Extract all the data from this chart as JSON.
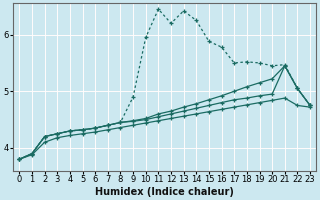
{
  "xlabel": "Humidex (Indice chaleur)",
  "ylabel": "",
  "bg_color": "#cce8f0",
  "grid_color_major": "#ffffff",
  "grid_color_red": "#e88080",
  "line_color": "#1a6b62",
  "xlim": [
    -0.5,
    23.5
  ],
  "ylim": [
    3.6,
    6.55
  ],
  "x_ticks": [
    0,
    1,
    2,
    3,
    4,
    5,
    6,
    7,
    8,
    9,
    10,
    11,
    12,
    13,
    14,
    15,
    16,
    17,
    18,
    19,
    20,
    21,
    22,
    23
  ],
  "y_ticks": [
    4,
    5,
    6
  ],
  "series": [
    {
      "x": [
        0,
        1,
        2,
        3,
        4,
        5,
        6,
        7,
        8,
        9,
        10,
        11,
        12,
        13,
        14,
        15,
        16,
        17,
        18,
        19,
        20,
        21,
        22,
        23
      ],
      "y": [
        3.8,
        3.9,
        4.2,
        4.25,
        4.3,
        4.32,
        4.35,
        4.4,
        4.45,
        4.9,
        5.95,
        6.45,
        6.2,
        6.42,
        6.25,
        5.88,
        5.78,
        5.5,
        5.52,
        5.5,
        5.45,
        5.47,
        5.05,
        4.75
      ],
      "style": "dotted",
      "marker": "+"
    },
    {
      "x": [
        0,
        1,
        2,
        3,
        4,
        5,
        6,
        7,
        8,
        9,
        10,
        11,
        12,
        13,
        14,
        15,
        16,
        17,
        18,
        19,
        20,
        21,
        22,
        23
      ],
      "y": [
        3.8,
        3.9,
        4.2,
        4.25,
        4.3,
        4.32,
        4.35,
        4.4,
        4.45,
        4.48,
        4.52,
        4.6,
        4.65,
        4.72,
        4.78,
        4.85,
        4.92,
        5.0,
        5.08,
        5.15,
        5.22,
        5.45,
        5.05,
        4.75
      ],
      "style": "solid",
      "marker": "+"
    },
    {
      "x": [
        0,
        1,
        2,
        3,
        4,
        5,
        6,
        7,
        8,
        9,
        10,
        11,
        12,
        13,
        14,
        15,
        16,
        17,
        18,
        19,
        20,
        21,
        22,
        23
      ],
      "y": [
        3.8,
        3.9,
        4.2,
        4.25,
        4.3,
        4.32,
        4.35,
        4.4,
        4.45,
        4.47,
        4.5,
        4.55,
        4.6,
        4.65,
        4.7,
        4.75,
        4.8,
        4.85,
        4.88,
        4.92,
        4.95,
        5.45,
        5.05,
        4.75
      ],
      "style": "solid",
      "marker": "+"
    },
    {
      "x": [
        0,
        1,
        2,
        3,
        4,
        5,
        6,
        7,
        8,
        9,
        10,
        11,
        12,
        13,
        14,
        15,
        16,
        17,
        18,
        19,
        20,
        21,
        22,
        23
      ],
      "y": [
        3.8,
        3.88,
        4.1,
        4.18,
        4.22,
        4.25,
        4.28,
        4.32,
        4.36,
        4.4,
        4.44,
        4.48,
        4.52,
        4.56,
        4.6,
        4.64,
        4.68,
        4.72,
        4.76,
        4.8,
        4.84,
        4.88,
        4.75,
        4.72
      ],
      "style": "solid",
      "marker": "+"
    }
  ]
}
